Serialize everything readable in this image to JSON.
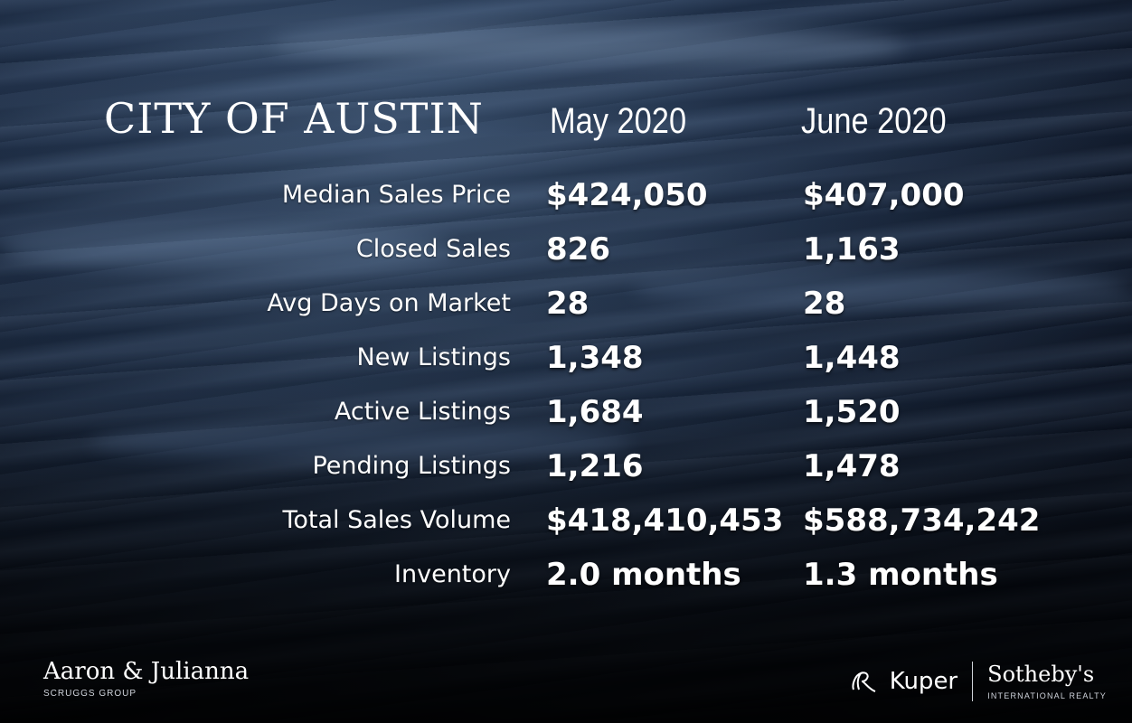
{
  "title": "CITY OF AUSTIN",
  "columns": {
    "may": "May 2020",
    "june": "June 2020"
  },
  "rows": [
    {
      "label": "Median Sales Price",
      "may": "$424,050",
      "june": "$407,000"
    },
    {
      "label": "Closed Sales",
      "may": "826",
      "june": "1,163"
    },
    {
      "label": "Avg Days on Market",
      "may": "28",
      "june": "28"
    },
    {
      "label": "New Listings",
      "may": "1,348",
      "june": "1,448"
    },
    {
      "label": "Active Listings",
      "may": "1,684",
      "june": "1,520"
    },
    {
      "label": "Pending Listings",
      "may": "1,216",
      "june": "1,478"
    },
    {
      "label": "Total Sales Volume",
      "may": "$418,410,453",
      "june": "$588,734,242"
    },
    {
      "label": "Inventory",
      "may": "2.0 months",
      "june": "1.3 months"
    }
  ],
  "branding": {
    "left_name": "Aaron & Julianna",
    "left_sub": "SCRUGGS GROUP",
    "kuper_icon": "kuper-logo-icon",
    "kuper": "Kuper",
    "sothebys": "Sotheby's",
    "sothebys_sub": "INTERNATIONAL REALTY"
  },
  "colors": {
    "background": "#0c1526",
    "text": "#ffffff"
  }
}
